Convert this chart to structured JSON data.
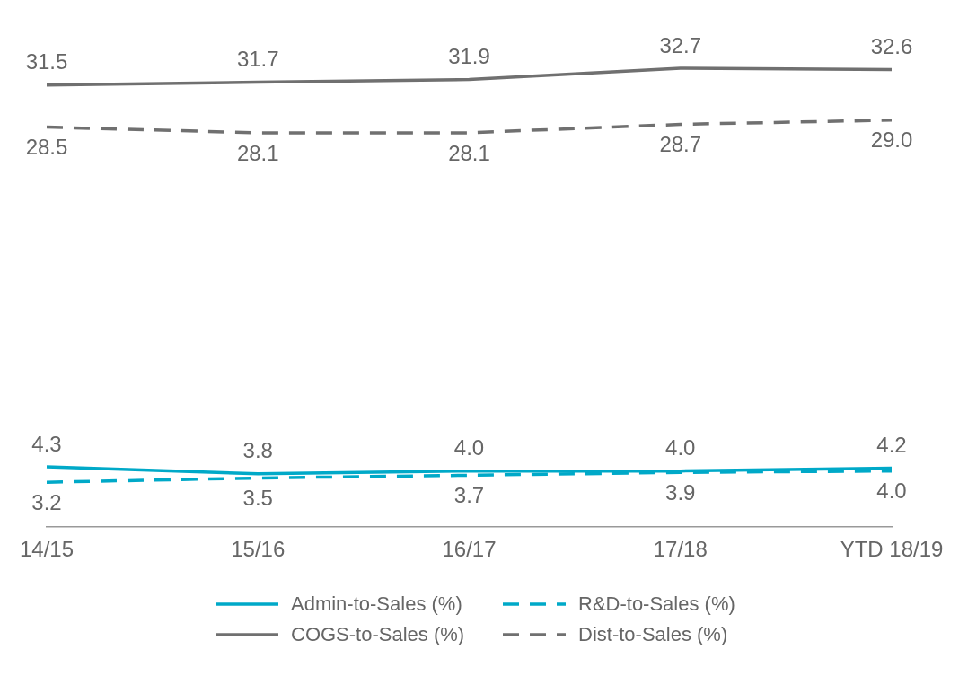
{
  "chart_data": {
    "type": "line",
    "categories": [
      "14/15",
      "15/16",
      "16/17",
      "17/18",
      "YTD 18/19"
    ],
    "series": [
      {
        "name": "Admin-to-Sales (%)",
        "color": "#00a9c8",
        "line_style": "solid",
        "values": [
          4.3,
          3.8,
          4.0,
          4.0,
          4.2
        ],
        "value_labels": [
          "4.3",
          "3.8",
          "4.0",
          "4.0",
          "4.2"
        ]
      },
      {
        "name": "R&D-to-Sales (%)",
        "color": "#00a9c8",
        "line_style": "dashed",
        "values": [
          3.2,
          3.5,
          3.7,
          3.9,
          4.0
        ],
        "value_labels": [
          "3.2",
          "3.5",
          "3.7",
          "3.9",
          "4.0"
        ]
      },
      {
        "name": "COGS-to-Sales (%)",
        "color": "#707070",
        "line_style": "solid",
        "values": [
          31.5,
          31.7,
          31.9,
          32.7,
          32.6
        ],
        "value_labels": [
          "31.5",
          "31.7",
          "31.9",
          "32.7",
          "32.6"
        ]
      },
      {
        "name": "Dist-to-Sales (%)",
        "color": "#707070",
        "line_style": "dashed",
        "values": [
          28.5,
          28.1,
          28.1,
          28.7,
          29.0
        ],
        "value_labels": [
          "28.5",
          "28.1",
          "28.1",
          "28.7",
          "29.0"
        ]
      }
    ],
    "legend": "bottom",
    "marker": "none"
  }
}
